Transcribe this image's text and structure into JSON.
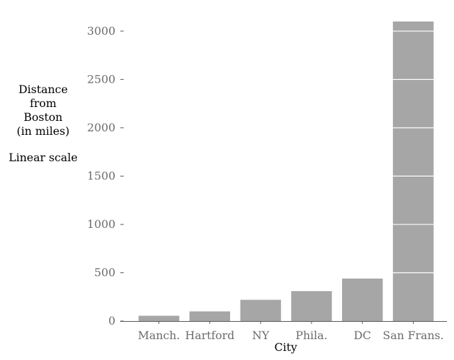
{
  "chart_data": {
    "type": "bar",
    "categories": [
      "Manch.",
      "Hartford",
      "NY",
      "Phila.",
      "DC",
      "San Frans."
    ],
    "values": [
      55,
      100,
      220,
      310,
      440,
      3100
    ],
    "xlabel": "City",
    "ylabel_lines": [
      "Distance",
      "from",
      "Boston",
      "(in miles)",
      "",
      "Linear scale"
    ],
    "yticks": [
      0,
      500,
      1000,
      1500,
      2000,
      2500,
      3000
    ],
    "ylim": [
      0,
      3200
    ],
    "grid": "horizontal white lines over bars",
    "colors": {
      "bar": "#a6a6a6",
      "gridline": "#ffffff",
      "axis": "#555555",
      "tick_label": "#6b6b6b"
    }
  }
}
